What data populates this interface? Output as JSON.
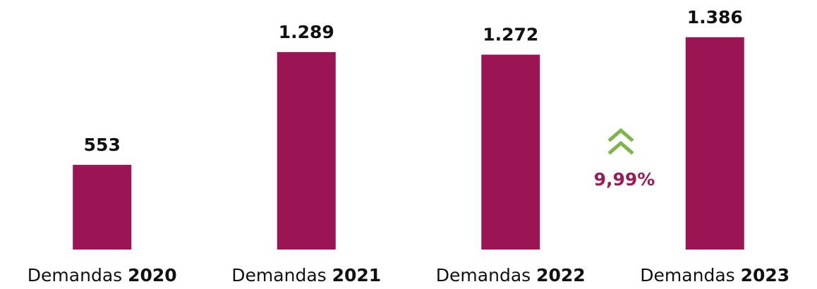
{
  "chart_data": {
    "type": "bar",
    "categories": [
      "Demandas 2020",
      "Demandas 2021",
      "Demandas 2022",
      "Demandas 2023"
    ],
    "values": [
      553,
      1289,
      1272,
      1386
    ],
    "value_labels": [
      "553",
      "1.289",
      "1.272",
      "1.386"
    ],
    "color": "#9b1554",
    "ylim": [
      0,
      1500
    ],
    "annotation": "9,99%",
    "annotation_color": "#9b1b56",
    "arrow_color": "#7ab648"
  }
}
